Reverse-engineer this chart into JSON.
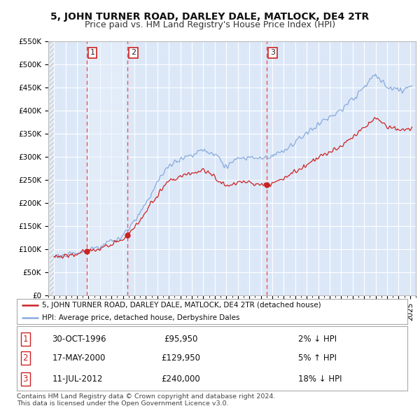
{
  "title": "5, JOHN TURNER ROAD, DARLEY DALE, MATLOCK, DE4 2TR",
  "subtitle": "Price paid vs. HM Land Registry's House Price Index (HPI)",
  "ylim": [
    0,
    550000
  ],
  "yticks": [
    0,
    50000,
    100000,
    150000,
    200000,
    250000,
    300000,
    350000,
    400000,
    450000,
    500000,
    550000
  ],
  "ytick_labels": [
    "£0",
    "£50K",
    "£100K",
    "£150K",
    "£200K",
    "£250K",
    "£300K",
    "£350K",
    "£400K",
    "£450K",
    "£500K",
    "£550K"
  ],
  "xlim_start": 1993.6,
  "xlim_end": 2025.4,
  "background_color": "#ffffff",
  "plot_bg_color": "#dce8f8",
  "grid_color": "#ffffff",
  "hpi_line_color": "#88aadd",
  "price_line_color": "#cc2222",
  "vline_color": "#ee4444",
  "shade_color": "#dce8f8",
  "hatch_color": "#c8d8e8",
  "sales": [
    {
      "num": 1,
      "year": 1996.83,
      "price": 95950,
      "label": "1"
    },
    {
      "num": 2,
      "year": 2000.38,
      "price": 129950,
      "label": "2"
    },
    {
      "num": 3,
      "year": 2012.53,
      "price": 240000,
      "label": "3"
    }
  ],
  "legend_entries": [
    "5, JOHN TURNER ROAD, DARLEY DALE, MATLOCK, DE4 2TR (detached house)",
    "HPI: Average price, detached house, Derbyshire Dales"
  ],
  "table_rows": [
    {
      "num": "1",
      "date": "30-OCT-1996",
      "price": "£95,950",
      "hpi": "2% ↓ HPI"
    },
    {
      "num": "2",
      "date": "17-MAY-2000",
      "price": "£129,950",
      "hpi": "5% ↑ HPI"
    },
    {
      "num": "3",
      "date": "11-JUL-2012",
      "price": "£240,000",
      "hpi": "18% ↓ HPI"
    }
  ],
  "footnote": "Contains HM Land Registry data © Crown copyright and database right 2024.\nThis data is licensed under the Open Government Licence v3.0.",
  "title_fontsize": 10,
  "subtitle_fontsize": 9,
  "tick_fontsize": 7.5,
  "legend_fontsize": 8,
  "table_fontsize": 8.5
}
